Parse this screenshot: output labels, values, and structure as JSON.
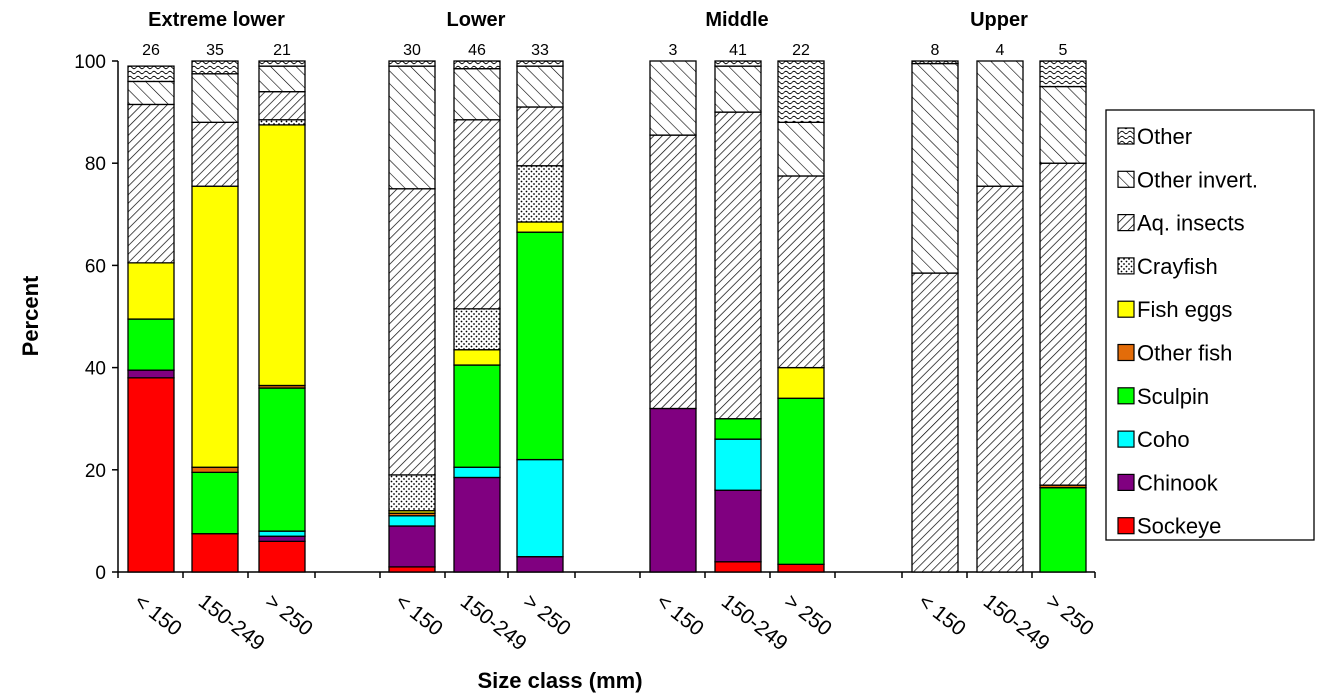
{
  "chart_data": {
    "type": "bar",
    "stacked": true,
    "ylabel": "Percent",
    "xlabel": "Size class (mm)",
    "ylim": [
      0,
      100
    ],
    "yticks": [
      0,
      20,
      40,
      60,
      80,
      100
    ],
    "legend_position": "right",
    "groups": [
      {
        "name": "Extreme lower",
        "categories": [
          "< 150",
          "150-249",
          "> 250"
        ],
        "n": [
          "26",
          "35",
          "21"
        ]
      },
      {
        "name": "Lower",
        "categories": [
          "< 150",
          "150-249",
          "> 250"
        ],
        "n": [
          "30",
          "46",
          "33"
        ]
      },
      {
        "name": "Middle",
        "categories": [
          "< 150",
          "150-249",
          "> 250"
        ],
        "n": [
          "3",
          "41",
          "22"
        ]
      },
      {
        "name": "Upper",
        "categories": [
          "< 150",
          "150-249",
          "> 250"
        ],
        "n": [
          "8",
          "4",
          "5"
        ]
      }
    ],
    "series": [
      {
        "name": "Sockeye",
        "color": "#ff0000",
        "pattern": "solid",
        "values": [
          [
            38,
            7.5,
            6
          ],
          [
            1,
            0,
            0
          ],
          [
            0,
            2,
            1.5
          ],
          [
            0,
            0,
            0
          ]
        ]
      },
      {
        "name": "Chinook",
        "color": "#800080",
        "pattern": "solid",
        "values": [
          [
            1.5,
            0,
            1
          ],
          [
            8,
            18.5,
            3
          ],
          [
            32,
            14,
            0
          ],
          [
            0,
            0,
            0
          ]
        ]
      },
      {
        "name": "Coho",
        "color": "#00ffff",
        "pattern": "solid",
        "values": [
          [
            0,
            0,
            1
          ],
          [
            2,
            2,
            19
          ],
          [
            0,
            10,
            0
          ],
          [
            0,
            0,
            0
          ]
        ]
      },
      {
        "name": "Sculpin",
        "color": "#00ff00",
        "pattern": "solid",
        "values": [
          [
            10,
            12,
            28
          ],
          [
            0,
            20,
            44.5
          ],
          [
            0,
            4,
            32.5
          ],
          [
            0,
            0,
            16.5
          ]
        ]
      },
      {
        "name": "Other fish",
        "color": "#e36c09",
        "pattern": "solid",
        "values": [
          [
            0,
            1,
            0.5
          ],
          [
            0.5,
            0,
            0
          ],
          [
            0,
            0,
            0
          ],
          [
            0,
            0,
            0.5
          ]
        ]
      },
      {
        "name": "Fish eggs",
        "color": "#ffff00",
        "pattern": "solid",
        "values": [
          [
            11,
            55,
            51
          ],
          [
            0.5,
            3,
            2
          ],
          [
            0,
            0,
            6
          ],
          [
            0,
            0,
            0
          ]
        ]
      },
      {
        "name": "Crayfish",
        "color": "#ffffff",
        "pattern": "dots",
        "values": [
          [
            0,
            0,
            1
          ],
          [
            7,
            8,
            11
          ],
          [
            0,
            0,
            0
          ],
          [
            0,
            0,
            0
          ]
        ]
      },
      {
        "name": "Aq. insects",
        "color": "#ffffff",
        "pattern": "diag-dense",
        "values": [
          [
            31,
            12.5,
            5.5
          ],
          [
            56,
            37,
            11.5
          ],
          [
            53.5,
            60,
            37.5
          ],
          [
            58.5,
            75.5,
            63
          ]
        ]
      },
      {
        "name": "Other invert.",
        "color": "#ffffff",
        "pattern": "diag-wide",
        "values": [
          [
            4.5,
            9.5,
            5
          ],
          [
            24,
            10,
            8
          ],
          [
            14.5,
            9,
            10.5
          ],
          [
            41,
            24.5,
            15
          ]
        ]
      },
      {
        "name": "Other",
        "color": "#ffffff",
        "pattern": "wave",
        "values": [
          [
            3,
            2.5,
            1
          ],
          [
            1,
            1.5,
            1
          ],
          [
            0,
            1,
            12
          ],
          [
            0.5,
            0,
            5
          ]
        ]
      }
    ]
  }
}
